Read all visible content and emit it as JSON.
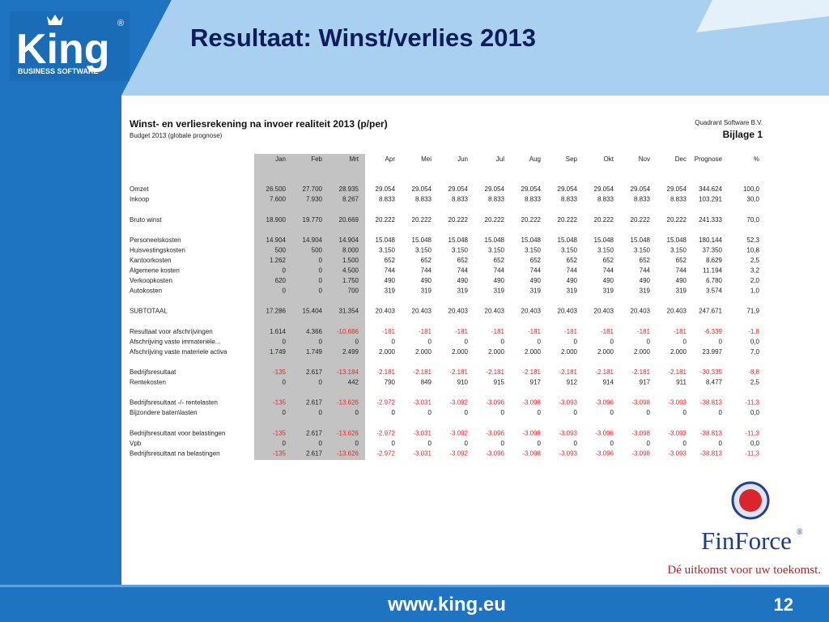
{
  "slide": {
    "title": "Resultaat: Winst/verlies 2013",
    "footer_url": "www.king.eu",
    "page_number": "12"
  },
  "logo": {
    "name": "King",
    "tagline": "BUSINESS SOFTWARE",
    "mark": "®"
  },
  "partner_logo": {
    "name": "FinForce",
    "mark": "®",
    "slogan": "Dé uitkomst voor uw toekomst."
  },
  "sheet": {
    "title": "Winst- en verliesrekening na invoer realiteit  2013 (p/per)",
    "subtitle": "Budget 2013 (globale prognose)",
    "company": "Quadrant Software B.V.",
    "appendix": "Bijlage 1",
    "columns": [
      "Jan",
      "Feb",
      "Mrt",
      "Apr",
      "Mei",
      "Jun",
      "Jul",
      "Aug",
      "Sep",
      "Okt",
      "Nov",
      "Dec",
      "Prognose",
      "%"
    ],
    "groups": [
      [
        {
          "label": "Omzet",
          "cells": [
            "26.500",
            "27.700",
            "28.935",
            "29.054",
            "29.054",
            "29.054",
            "29.054",
            "29.054",
            "29.054",
            "29.054",
            "29.054",
            "29.054",
            "344.624",
            "100,0"
          ]
        },
        {
          "label": "Inkoop",
          "cells": [
            "7.600",
            "7.930",
            "8.267",
            "8.833",
            "8.833",
            "8.833",
            "8.833",
            "8.833",
            "8.833",
            "8.833",
            "8.833",
            "8.833",
            "103.291",
            "30,0"
          ]
        }
      ],
      [
        {
          "label": "Bruto winst",
          "cells": [
            "18.900",
            "19.770",
            "20.669",
            "20.222",
            "20.222",
            "20.222",
            "20.222",
            "20.222",
            "20.222",
            "20.222",
            "20.222",
            "20.222",
            "241.333",
            "70,0"
          ]
        }
      ],
      [
        {
          "label": "Personeelskosten",
          "cells": [
            "14.904",
            "14.904",
            "14.904",
            "15.048",
            "15.048",
            "15.048",
            "15.048",
            "15.048",
            "15.048",
            "15.048",
            "15.048",
            "15.048",
            "180.144",
            "52,3"
          ]
        },
        {
          "label": "Huisvestingskosten",
          "cells": [
            "500",
            "500",
            "8.000",
            "3.150",
            "3.150",
            "3.150",
            "3.150",
            "3.150",
            "3.150",
            "3.150",
            "3.150",
            "3.150",
            "37.350",
            "10,8"
          ]
        },
        {
          "label": "Kantoorkosten",
          "cells": [
            "1.262",
            "0",
            "1.500",
            "652",
            "652",
            "652",
            "652",
            "652",
            "652",
            "652",
            "652",
            "652",
            "8.629",
            "2,5"
          ]
        },
        {
          "label": "Algemene kosten",
          "cells": [
            "0",
            "0",
            "4.500",
            "744",
            "744",
            "744",
            "744",
            "744",
            "744",
            "744",
            "744",
            "744",
            "11.194",
            "3,2"
          ]
        },
        {
          "label": "Verkoopkosten",
          "cells": [
            "620",
            "0",
            "1.750",
            "490",
            "490",
            "490",
            "490",
            "490",
            "490",
            "490",
            "490",
            "490",
            "6.780",
            "2,0"
          ]
        },
        {
          "label": "Autokosten",
          "cells": [
            "0",
            "0",
            "700",
            "319",
            "319",
            "319",
            "319",
            "319",
            "319",
            "319",
            "319",
            "319",
            "3.574",
            "1,0"
          ]
        }
      ],
      [
        {
          "label": "SUBTOTAAL",
          "cells": [
            "17.286",
            "15.404",
            "31.354",
            "20.403",
            "20.403",
            "20.403",
            "20.403",
            "20.403",
            "20.403",
            "20.403",
            "20.403",
            "20.403",
            "247.671",
            "71,9"
          ]
        }
      ],
      [
        {
          "label": "Resultaat voor afschrijvingen",
          "cells": [
            "1.614",
            "4.366",
            "-10.686",
            "-181",
            "-181",
            "-181",
            "-181",
            "-181",
            "-181",
            "-181",
            "-181",
            "-181",
            "-6.339",
            "-1,8"
          ]
        },
        {
          "label": "Afschrijving vaste immateriële...",
          "cells": [
            "0",
            "0",
            "0",
            "0",
            "0",
            "0",
            "0",
            "0",
            "0",
            "0",
            "0",
            "0",
            "0",
            "0,0"
          ]
        },
        {
          "label": "Afschrijving vaste materiele activa",
          "cells": [
            "1.749",
            "1.749",
            "2.499",
            "2.000",
            "2.000",
            "2.000",
            "2.000",
            "2.000",
            "2.000",
            "2.000",
            "2.000",
            "2.000",
            "23.997",
            "7,0"
          ]
        }
      ],
      [
        {
          "label": "Bedrijfsresultaat",
          "cells": [
            "-135",
            "2.617",
            "-13.184",
            "-2.181",
            "-2.181",
            "-2.181",
            "-2.181",
            "-2.181",
            "-2.181",
            "-2.181",
            "-2.181",
            "-2.181",
            "-30.335",
            "-8,8"
          ]
        },
        {
          "label": "Rentekosten",
          "cells": [
            "0",
            "0",
            "442",
            "790",
            "849",
            "910",
            "915",
            "917",
            "912",
            "914",
            "917",
            "911",
            "8.477",
            "2,5"
          ]
        }
      ],
      [
        {
          "label": "Bedrijfsresultaat -/- rentelasten",
          "cells": [
            "-135",
            "2.617",
            "-13.626",
            "-2.972",
            "-3.031",
            "-3.092",
            "-3.096",
            "-3.098",
            "-3.093",
            "-3.096",
            "-3.098",
            "-3.093",
            "-38.813",
            "-11,3"
          ]
        },
        {
          "label": "Bijzondere baten\\lasten",
          "cells": [
            "0",
            "0",
            "0",
            "0",
            "0",
            "0",
            "0",
            "0",
            "0",
            "0",
            "0",
            "0",
            "0",
            "0,0"
          ]
        }
      ],
      [
        {
          "label": "Bedrijfsresultaat voor belastingen",
          "cells": [
            "-135",
            "2.617",
            "-13.626",
            "-2.972",
            "-3.031",
            "-3.092",
            "-3.096",
            "-3.098",
            "-3.093",
            "-3.096",
            "-3.098",
            "-3.093",
            "-38.813",
            "-11,3"
          ]
        },
        {
          "label": "Vpb",
          "cells": [
            "0",
            "0",
            "0",
            "0",
            "0",
            "0",
            "0",
            "0",
            "0",
            "0",
            "0",
            "0",
            "0",
            "0,0"
          ]
        },
        {
          "label": "Bedrijfsresultaat na belastingen",
          "cells": [
            "-135",
            "2.617",
            "-13.626",
            "-2.972",
            "-3.031",
            "-3.092",
            "-3.096",
            "-3.098",
            "-3.093",
            "-3.096",
            "-3.098",
            "-3.093",
            "-38.813",
            "-11,3"
          ]
        }
      ]
    ]
  }
}
